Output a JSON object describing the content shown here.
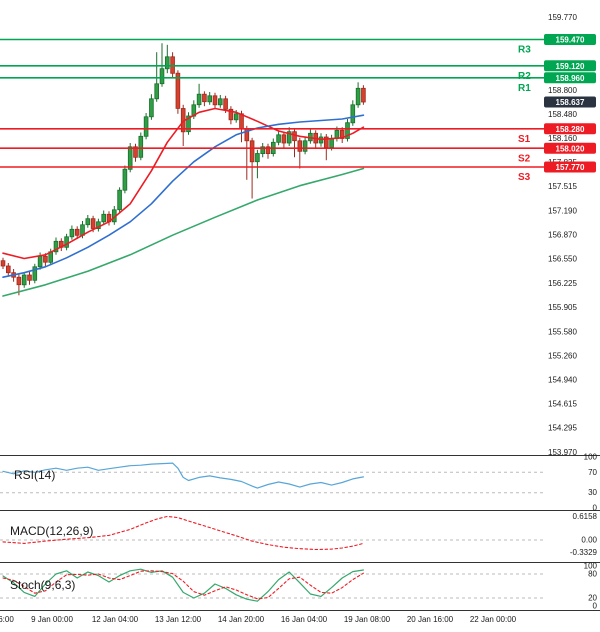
{
  "chart_data": {
    "type": "candlestick",
    "title": "",
    "legend_position": "none",
    "grid": false,
    "price_axis": {
      "min": 153.97,
      "max": 159.77,
      "ticks": [
        "159.770",
        "159.445",
        "159.125",
        "158.800",
        "158.480",
        "158.160",
        "157.835",
        "157.515",
        "157.190",
        "156.870",
        "156.550",
        "156.225",
        "155.905",
        "155.580",
        "155.260",
        "154.940",
        "154.615",
        "154.295",
        "153.970"
      ]
    },
    "time_axis": {
      "labels": [
        "6:00",
        "9 Jan 00:00",
        "12 Jan 04:00",
        "13 Jan 12:00",
        "14 Jan 20:00",
        "16 Jan 04:00",
        "19 Jan 08:00",
        "20 Jan 16:00",
        "22 Jan 00:00"
      ]
    },
    "levels": {
      "resistance": [
        {
          "label": "R3",
          "value": 159.47,
          "display": "159.470"
        },
        {
          "label": "R2",
          "value": 159.12,
          "display": "159.120"
        },
        {
          "label": "R1",
          "value": 158.96,
          "display": "158.960"
        }
      ],
      "support": [
        {
          "label": "S1",
          "value": 158.28,
          "display": "158.280"
        },
        {
          "label": "S2",
          "value": 158.02,
          "display": "158.020"
        },
        {
          "label": "S3",
          "value": 157.77,
          "display": "157.770"
        }
      ],
      "current_price": {
        "value": 158.637,
        "display": "158.637"
      }
    },
    "candles": [
      [
        156.52,
        156.56,
        156.41,
        156.45
      ],
      [
        156.45,
        156.49,
        156.31,
        156.36
      ],
      [
        156.36,
        156.41,
        156.24,
        156.3
      ],
      [
        156.3,
        156.34,
        156.06,
        156.2
      ],
      [
        156.2,
        156.37,
        156.16,
        156.33
      ],
      [
        156.33,
        156.37,
        156.2,
        156.26
      ],
      [
        156.26,
        156.48,
        156.22,
        156.44
      ],
      [
        156.44,
        156.63,
        156.4,
        156.58
      ],
      [
        156.58,
        156.62,
        156.45,
        156.5
      ],
      [
        156.5,
        156.68,
        156.46,
        156.64
      ],
      [
        156.64,
        156.83,
        156.6,
        156.78
      ],
      [
        156.78,
        156.82,
        156.65,
        156.7
      ],
      [
        156.7,
        156.88,
        156.66,
        156.84
      ],
      [
        156.84,
        156.99,
        156.8,
        156.94
      ],
      [
        156.94,
        156.98,
        156.81,
        156.86
      ],
      [
        156.86,
        157.05,
        156.82,
        157.0
      ],
      [
        157.0,
        157.13,
        156.96,
        157.08
      ],
      [
        157.08,
        157.12,
        156.9,
        156.95
      ],
      [
        156.95,
        157.08,
        156.91,
        157.04
      ],
      [
        157.04,
        157.19,
        157.0,
        157.14
      ],
      [
        157.14,
        157.18,
        156.99,
        157.04
      ],
      [
        157.04,
        157.25,
        157.0,
        157.2
      ],
      [
        157.2,
        157.5,
        157.16,
        157.46
      ],
      [
        157.46,
        157.79,
        157.42,
        157.74
      ],
      [
        157.74,
        158.09,
        157.7,
        158.04
      ],
      [
        158.04,
        158.08,
        157.84,
        157.9
      ],
      [
        157.9,
        158.23,
        157.86,
        158.18
      ],
      [
        158.18,
        158.49,
        158.14,
        158.44
      ],
      [
        158.44,
        158.74,
        158.4,
        158.68
      ],
      [
        158.68,
        159.3,
        158.64,
        158.88
      ],
      [
        158.88,
        159.42,
        158.84,
        159.08
      ],
      [
        159.08,
        159.4,
        159.02,
        159.24
      ],
      [
        159.24,
        159.3,
        158.95,
        159.02
      ],
      [
        159.02,
        159.06,
        158.48,
        158.55
      ],
      [
        158.55,
        158.6,
        158.05,
        158.24
      ],
      [
        158.24,
        158.5,
        158.2,
        158.45
      ],
      [
        158.45,
        158.66,
        158.41,
        158.6
      ],
      [
        158.6,
        158.88,
        158.56,
        158.74
      ],
      [
        158.74,
        158.78,
        158.58,
        158.64
      ],
      [
        158.64,
        158.77,
        158.6,
        158.72
      ],
      [
        158.72,
        158.76,
        158.55,
        158.6
      ],
      [
        158.6,
        158.73,
        158.56,
        158.68
      ],
      [
        158.68,
        158.72,
        158.49,
        158.54
      ],
      [
        158.54,
        158.58,
        158.34,
        158.4
      ],
      [
        158.4,
        158.53,
        158.36,
        158.48
      ],
      [
        158.48,
        158.52,
        158.1,
        158.28
      ],
      [
        158.28,
        158.32,
        157.6,
        158.12
      ],
      [
        158.12,
        158.16,
        157.35,
        157.84
      ],
      [
        157.84,
        158.0,
        157.62,
        157.95
      ],
      [
        157.95,
        158.09,
        157.9,
        158.04
      ],
      [
        158.04,
        158.08,
        157.88,
        157.95
      ],
      [
        157.95,
        158.15,
        157.91,
        158.1
      ],
      [
        158.1,
        158.26,
        158.06,
        158.2
      ],
      [
        158.2,
        158.24,
        158.02,
        158.09
      ],
      [
        158.09,
        158.3,
        158.05,
        158.24
      ],
      [
        158.24,
        158.28,
        157.9,
        158.12
      ],
      [
        158.12,
        158.16,
        157.75,
        157.98
      ],
      [
        157.98,
        158.17,
        157.94,
        158.12
      ],
      [
        158.12,
        158.28,
        158.08,
        158.22
      ],
      [
        158.22,
        158.26,
        158.03,
        158.09
      ],
      [
        158.09,
        158.22,
        158.04,
        158.17
      ],
      [
        158.17,
        158.21,
        157.86,
        158.03
      ],
      [
        158.03,
        158.2,
        157.99,
        158.15
      ],
      [
        158.15,
        158.31,
        158.11,
        158.26
      ],
      [
        158.26,
        158.3,
        158.09,
        158.15
      ],
      [
        158.15,
        158.41,
        158.11,
        158.36
      ],
      [
        158.36,
        158.66,
        158.32,
        158.6
      ],
      [
        158.6,
        158.9,
        158.56,
        158.82
      ],
      [
        158.82,
        158.86,
        158.6,
        158.637
      ]
    ],
    "moving_averages": [
      {
        "name": "ma-fast-red",
        "color_key": "ma_fast",
        "points": [
          [
            0,
            156.62
          ],
          [
            4,
            156.55
          ],
          [
            8,
            156.6
          ],
          [
            12,
            156.74
          ],
          [
            16,
            156.9
          ],
          [
            20,
            157.04
          ],
          [
            24,
            157.28
          ],
          [
            28,
            157.72
          ],
          [
            31,
            158.1
          ],
          [
            34,
            158.38
          ],
          [
            37,
            158.5
          ],
          [
            40,
            158.55
          ],
          [
            44,
            158.5
          ],
          [
            48,
            158.38
          ],
          [
            52,
            158.25
          ],
          [
            56,
            158.18
          ],
          [
            60,
            158.14
          ],
          [
            64,
            158.16
          ],
          [
            66,
            158.22
          ],
          [
            68,
            158.3
          ]
        ]
      },
      {
        "name": "ma-mid-blue",
        "color_key": "ma_mid",
        "points": [
          [
            0,
            156.3
          ],
          [
            4,
            156.36
          ],
          [
            8,
            156.44
          ],
          [
            12,
            156.56
          ],
          [
            16,
            156.7
          ],
          [
            20,
            156.86
          ],
          [
            24,
            157.04
          ],
          [
            28,
            157.28
          ],
          [
            32,
            157.58
          ],
          [
            36,
            157.84
          ],
          [
            40,
            158.04
          ],
          [
            44,
            158.2
          ],
          [
            48,
            158.29
          ],
          [
            52,
            158.34
          ],
          [
            56,
            158.37
          ],
          [
            60,
            158.39
          ],
          [
            64,
            158.41
          ],
          [
            68,
            158.46
          ]
        ]
      },
      {
        "name": "ma-slow-green",
        "color_key": "ma_slow",
        "points": [
          [
            0,
            156.05
          ],
          [
            8,
            156.2
          ],
          [
            16,
            156.38
          ],
          [
            24,
            156.6
          ],
          [
            32,
            156.86
          ],
          [
            40,
            157.1
          ],
          [
            48,
            157.33
          ],
          [
            56,
            157.52
          ],
          [
            64,
            157.67
          ],
          [
            68,
            157.75
          ]
        ]
      }
    ],
    "indicators": {
      "rsi": {
        "label": "RSI(14)",
        "ticks": [
          {
            "label": "100",
            "v": 100
          },
          {
            "label": "70",
            "v": 70
          },
          {
            "label": "30",
            "v": 30
          },
          {
            "label": "0",
            "v": 0
          }
        ],
        "dashed": [
          70,
          30
        ],
        "points": [
          [
            0,
            72
          ],
          [
            2,
            67
          ],
          [
            4,
            73
          ],
          [
            6,
            70
          ],
          [
            8,
            75
          ],
          [
            10,
            78
          ],
          [
            12,
            74
          ],
          [
            14,
            78
          ],
          [
            16,
            80
          ],
          [
            18,
            74
          ],
          [
            20,
            77
          ],
          [
            22,
            80
          ],
          [
            24,
            83
          ],
          [
            26,
            84
          ],
          [
            28,
            86
          ],
          [
            30,
            87
          ],
          [
            32,
            88
          ],
          [
            33,
            78
          ],
          [
            34,
            60
          ],
          [
            35,
            54
          ],
          [
            37,
            60
          ],
          [
            39,
            63
          ],
          [
            41,
            59
          ],
          [
            43,
            56
          ],
          [
            45,
            52
          ],
          [
            47,
            43
          ],
          [
            48,
            39
          ],
          [
            50,
            46
          ],
          [
            52,
            51
          ],
          [
            54,
            47
          ],
          [
            56,
            41
          ],
          [
            58,
            47
          ],
          [
            60,
            50
          ],
          [
            62,
            45
          ],
          [
            64,
            50
          ],
          [
            66,
            57
          ],
          [
            68,
            61
          ]
        ]
      },
      "macd": {
        "label": "MACD(12,26,9)",
        "ticks": [
          {
            "label": "0.6158",
            "v": 0.6158
          },
          {
            "label": "0.00",
            "v": 0
          },
          {
            "label": "-0.3329",
            "v": -0.3329
          }
        ],
        "dashed": [
          0
        ],
        "signal_points": [
          [
            0,
            -0.05
          ],
          [
            4,
            -0.09
          ],
          [
            8,
            -0.03
          ],
          [
            12,
            0.02
          ],
          [
            16,
            0.06
          ],
          [
            20,
            0.12
          ],
          [
            24,
            0.28
          ],
          [
            27,
            0.45
          ],
          [
            29,
            0.55
          ],
          [
            31,
            0.62
          ],
          [
            33,
            0.59
          ],
          [
            35,
            0.5
          ],
          [
            38,
            0.37
          ],
          [
            41,
            0.24
          ],
          [
            44,
            0.11
          ],
          [
            47,
            -0.03
          ],
          [
            50,
            -0.12
          ],
          [
            53,
            -0.19
          ],
          [
            56,
            -0.23
          ],
          [
            59,
            -0.25
          ],
          [
            62,
            -0.24
          ],
          [
            64,
            -0.21
          ],
          [
            66,
            -0.16
          ],
          [
            68,
            -0.09
          ]
        ]
      },
      "stoch": {
        "label": "Stoch(9,6,3)",
        "ticks": [
          {
            "label": "100",
            "v": 100
          },
          {
            "label": "80",
            "v": 80
          },
          {
            "label": "20",
            "v": 20
          },
          {
            "label": "0",
            "v": 0
          }
        ],
        "dashed": [
          80,
          20
        ],
        "k_points": [
          [
            0,
            75
          ],
          [
            2,
            58
          ],
          [
            4,
            34
          ],
          [
            6,
            24
          ],
          [
            8,
            55
          ],
          [
            10,
            80
          ],
          [
            12,
            88
          ],
          [
            14,
            70
          ],
          [
            16,
            85
          ],
          [
            18,
            76
          ],
          [
            20,
            60
          ],
          [
            22,
            76
          ],
          [
            24,
            88
          ],
          [
            26,
            92
          ],
          [
            28,
            84
          ],
          [
            30,
            88
          ],
          [
            32,
            72
          ],
          [
            34,
            34
          ],
          [
            36,
            20
          ],
          [
            38,
            32
          ],
          [
            40,
            55
          ],
          [
            42,
            44
          ],
          [
            44,
            28
          ],
          [
            46,
            17
          ],
          [
            48,
            12
          ],
          [
            50,
            36
          ],
          [
            52,
            66
          ],
          [
            54,
            85
          ],
          [
            56,
            58
          ],
          [
            58,
            30
          ],
          [
            60,
            24
          ],
          [
            62,
            46
          ],
          [
            64,
            70
          ],
          [
            66,
            86
          ],
          [
            68,
            90
          ]
        ],
        "d_points": [
          [
            0,
            70
          ],
          [
            2,
            64
          ],
          [
            4,
            49
          ],
          [
            6,
            32
          ],
          [
            8,
            38
          ],
          [
            10,
            60
          ],
          [
            12,
            78
          ],
          [
            14,
            79
          ],
          [
            16,
            77
          ],
          [
            18,
            80
          ],
          [
            20,
            70
          ],
          [
            22,
            66
          ],
          [
            24,
            76
          ],
          [
            26,
            87
          ],
          [
            28,
            88
          ],
          [
            30,
            86
          ],
          [
            32,
            81
          ],
          [
            34,
            62
          ],
          [
            36,
            36
          ],
          [
            38,
            27
          ],
          [
            40,
            38
          ],
          [
            42,
            48
          ],
          [
            44,
            40
          ],
          [
            46,
            28
          ],
          [
            48,
            18
          ],
          [
            50,
            21
          ],
          [
            52,
            44
          ],
          [
            54,
            68
          ],
          [
            56,
            72
          ],
          [
            58,
            52
          ],
          [
            60,
            34
          ],
          [
            62,
            32
          ],
          [
            64,
            46
          ],
          [
            66,
            66
          ],
          [
            68,
            82
          ]
        ]
      }
    },
    "colors": {
      "up": "#2f9e44",
      "up_border": "#1b6e2e",
      "down": "#d6402e",
      "down_border": "#9c2b1f",
      "resistance": "#00a651",
      "support": "#ed1c24",
      "current_price_box": "#2b3340",
      "ma_fast": "#ed1c24",
      "ma_mid": "#2f6fd0",
      "ma_slow": "#35a86b",
      "rsi_line": "#58a6d8",
      "macd_signal": "#ed1c24",
      "stoch_k": "#35a86b",
      "stoch_d": "#ed1c24",
      "axis_text": "#1a1a1a",
      "separator": "#333333",
      "grid_dashed": "#bbbbbb"
    }
  }
}
